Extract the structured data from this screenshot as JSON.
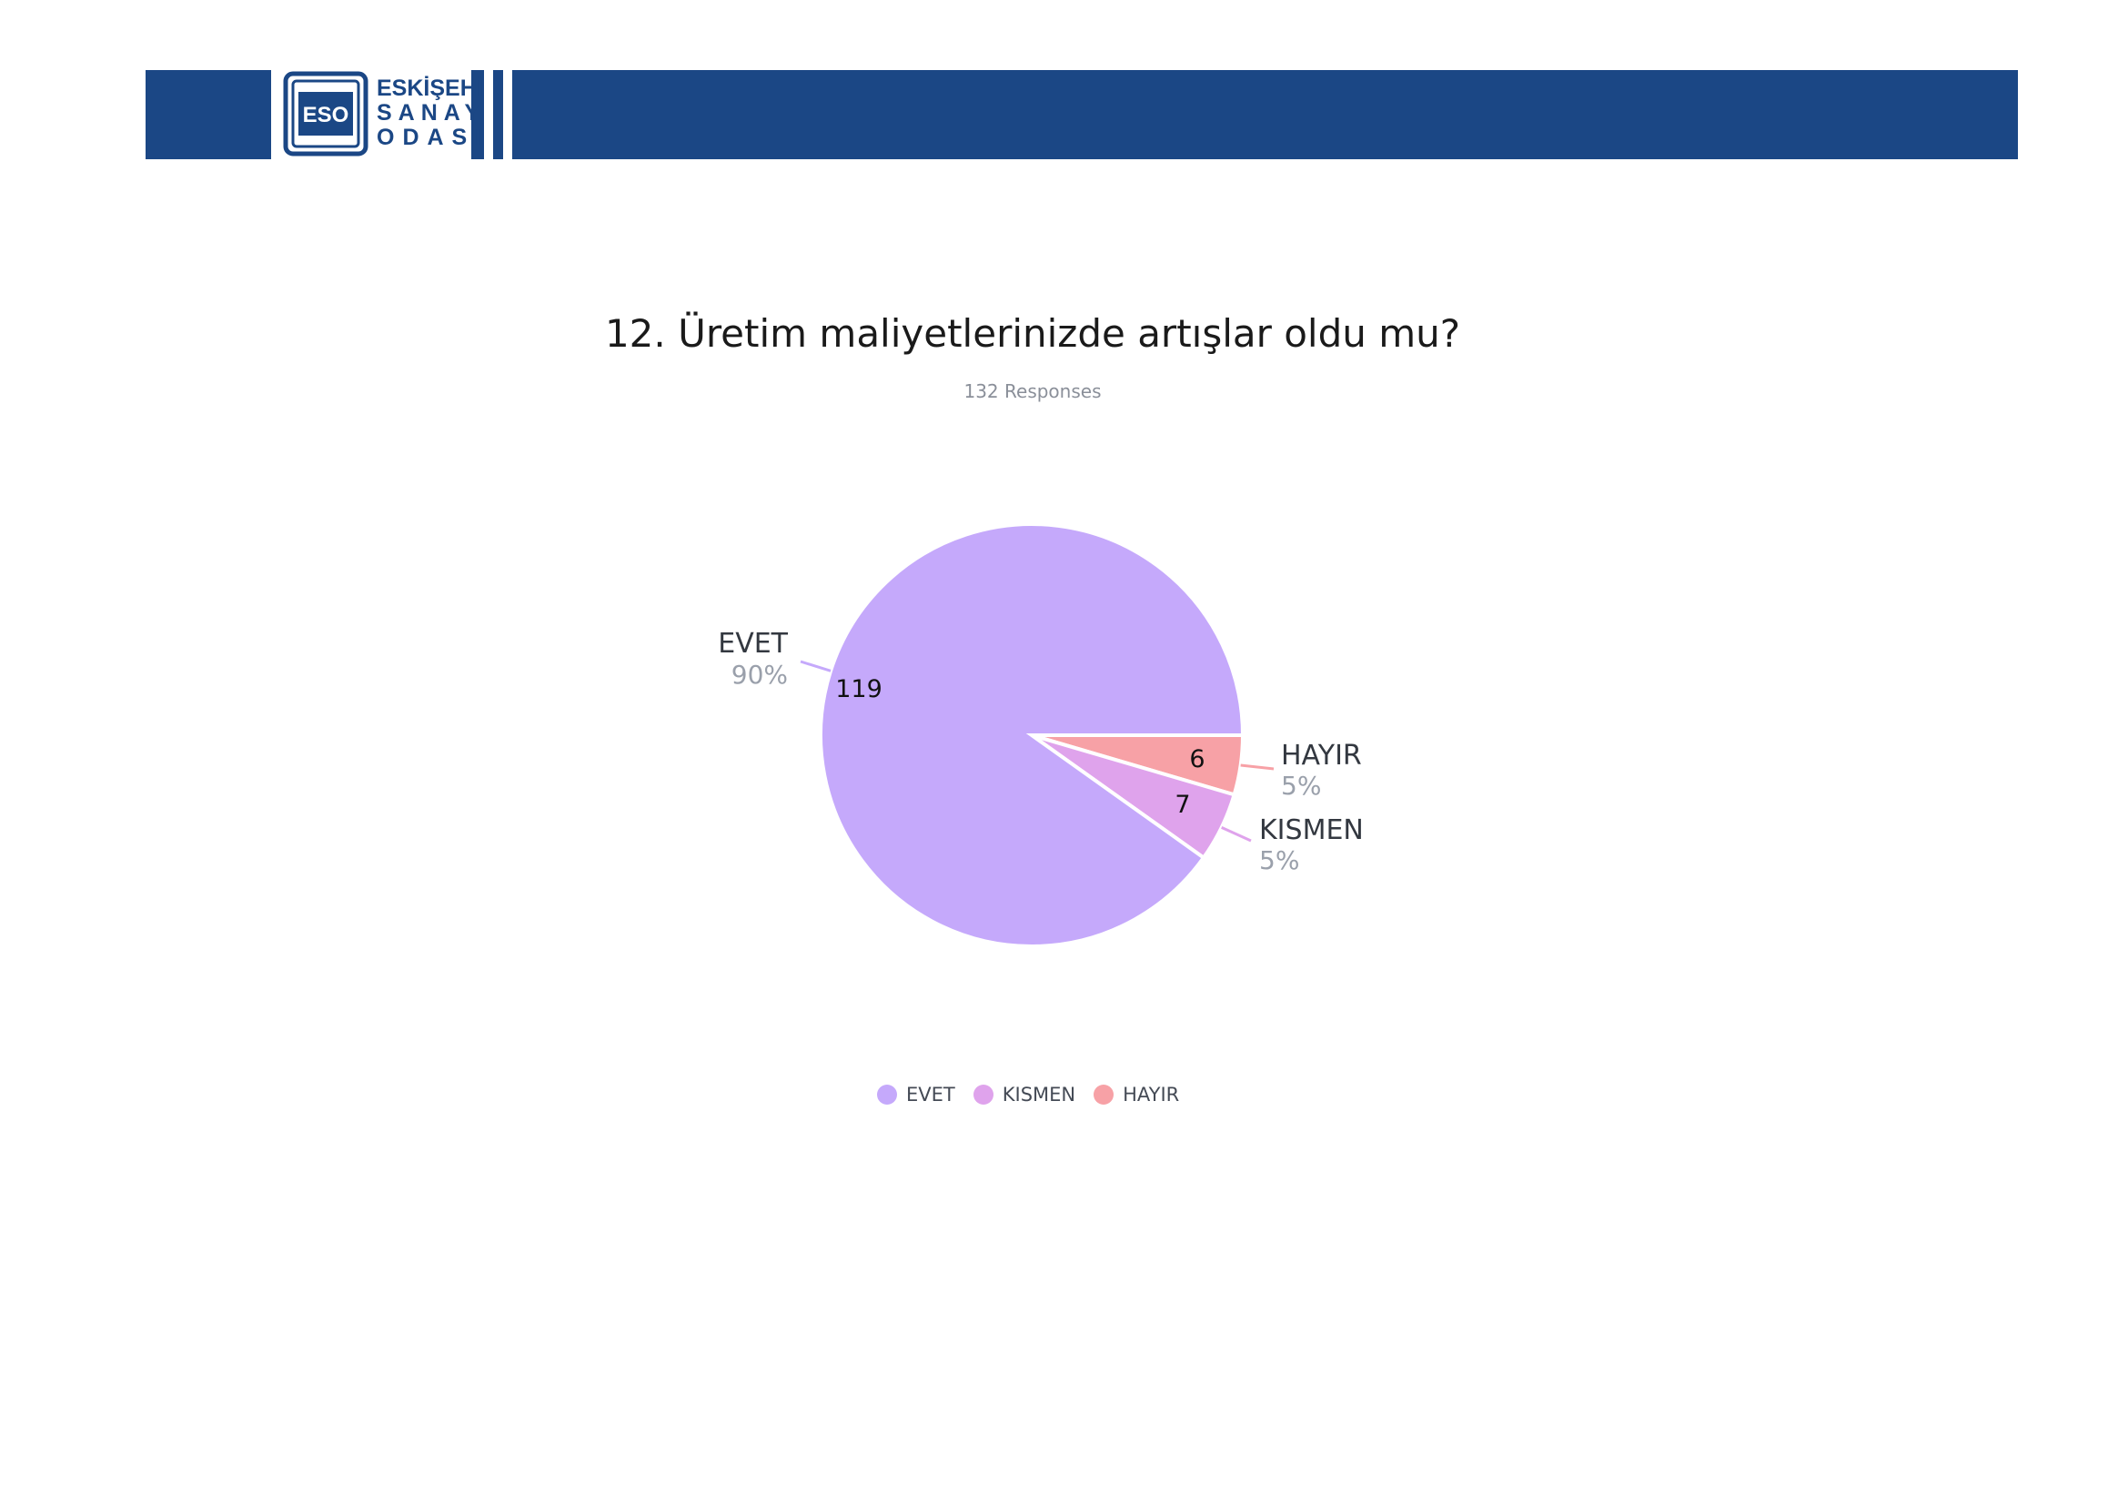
{
  "header": {
    "logo": {
      "emblem_text": "ESO",
      "line1": "ESKİŞEHİR",
      "line2": "SANAYİ",
      "line3": "ODASI"
    },
    "colors": {
      "bar": "#1b4785"
    }
  },
  "chart_data": {
    "type": "pie",
    "title": "12. Üretim maliyetlerinizde artışlar oldu mu?",
    "subtitle": "132 Responses",
    "slices": [
      {
        "label": "EVET",
        "count": 119,
        "count_label": "119",
        "percent_label": "90%",
        "color": "#c5a9fb"
      },
      {
        "label": "KISMEN",
        "count": 7,
        "count_label": "7",
        "percent_label": "5%",
        "color": "#dfa3ec"
      },
      {
        "label": "HAYIR",
        "count": 6,
        "count_label": "6",
        "percent_label": "5%",
        "color": "#f7a1a6"
      }
    ],
    "legend": {
      "placement": "bottom",
      "items": [
        {
          "label": "EVET",
          "color": "#c5a9fb"
        },
        {
          "label": "KISMEN",
          "color": "#dfa3ec"
        },
        {
          "label": "HAYIR",
          "color": "#f7a1a6"
        }
      ]
    }
  }
}
